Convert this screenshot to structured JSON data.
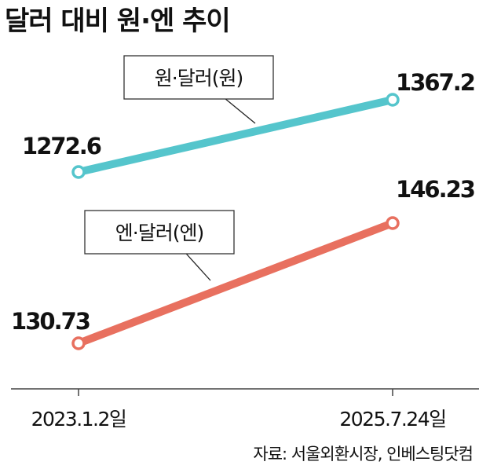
{
  "title": "달러 대비 원·엔 추이",
  "source": "자료: 서울외환시장, 인베스팅닷컴",
  "chart_data": {
    "type": "line",
    "x": [
      "2023.1.2일",
      "2025.7.24일"
    ],
    "series": [
      {
        "name": "원·달러(원)",
        "values": [
          1272.6,
          1367.2
        ],
        "labels": [
          "1272.6",
          "1367.2"
        ],
        "color": "#55c5cc"
      },
      {
        "name": "엔·달러(엔)",
        "values": [
          130.73,
          146.23
        ],
        "labels": [
          "130.73",
          "146.23"
        ],
        "color": "#e8705f"
      }
    ],
    "axis_color": "#444444",
    "grid": false,
    "yaxis_shown": false,
    "independent_scales": true
  }
}
